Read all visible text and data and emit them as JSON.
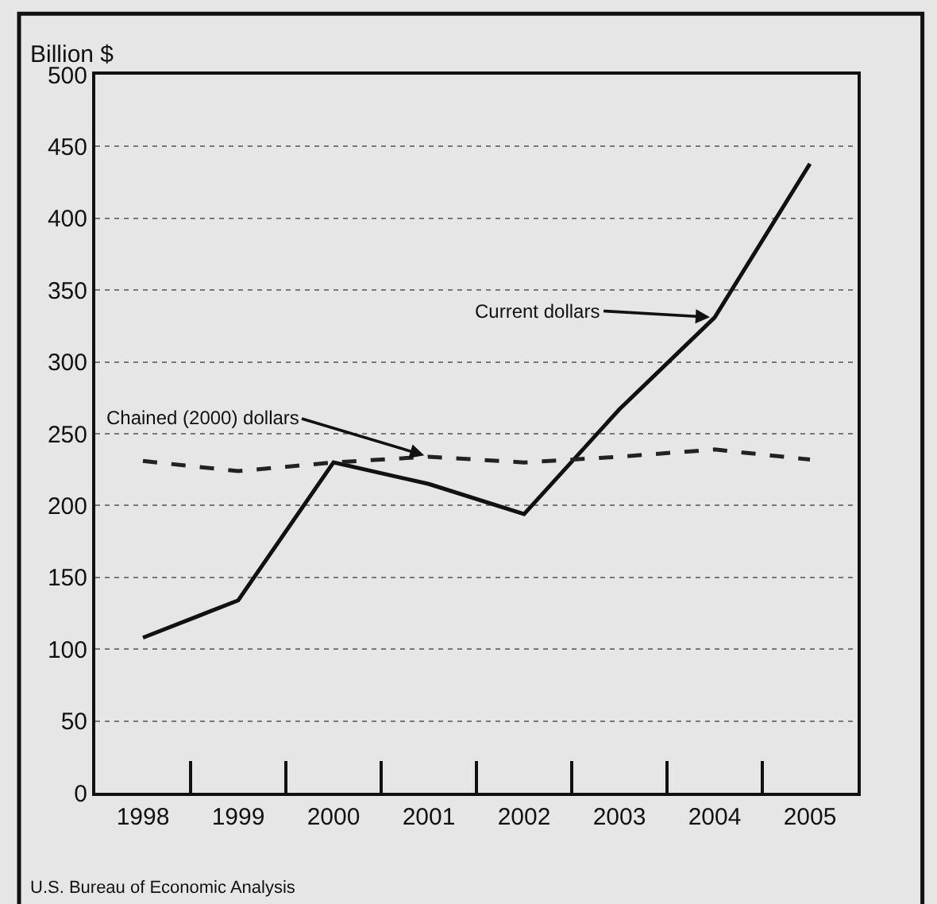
{
  "chart_data": {
    "type": "line",
    "ylabel": "Billion $",
    "categories": [
      "1998",
      "1999",
      "2000",
      "2001",
      "2002",
      "2003",
      "2004",
      "2005"
    ],
    "series": [
      {
        "color": "#111111",
        "line_style": "solid",
        "values": [
          108,
          134,
          230,
          215,
          194,
          267,
          331,
          438
        ]
      },
      {
        "color": "#222222",
        "line_style": "dashed",
        "values": [
          231,
          224,
          230,
          234,
          230,
          234,
          239,
          232
        ]
      }
    ],
    "ylim": [
      0,
      500
    ],
    "yticks": [
      0,
      50,
      100,
      150,
      200,
      250,
      300,
      350,
      400,
      450,
      500
    ],
    "grid": "y",
    "marker": "none",
    "annotations": [
      {
        "text": "Current dollars",
        "x": "2004",
        "y": 331
      },
      {
        "text": "Chained (2000) dollars",
        "x": "2001",
        "y": 234
      },
      "U.S. Bureau of Economic Analysis"
    ]
  }
}
